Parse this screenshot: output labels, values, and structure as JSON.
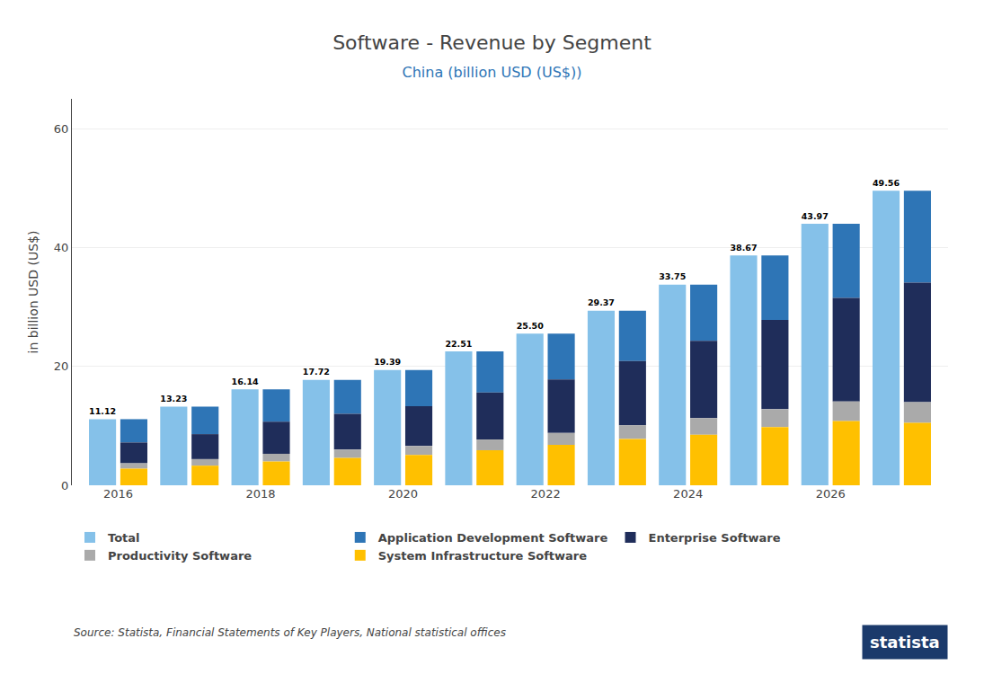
{
  "chart_data": {
    "type": "bar",
    "title": "Software - Revenue by Segment",
    "subtitle": "China (billion USD (US$))",
    "categories": [
      "2016",
      null,
      "2018",
      null,
      "2020",
      null,
      "2022",
      null,
      "2024",
      null,
      "2026",
      null
    ],
    "series": [
      {
        "name": "Total",
        "type": "bar",
        "color": "#85C1E9",
        "values": [
          11.12,
          13.23,
          16.14,
          17.72,
          19.39,
          22.51,
          25.5,
          29.37,
          33.75,
          38.67,
          43.97,
          49.56
        ],
        "value_labels": [
          "11.12",
          "13.23",
          "16.14",
          "17.72",
          "19.39",
          "22.51",
          "25.50",
          "29.37",
          "33.75",
          "38.67",
          "43.97",
          "49.56"
        ],
        "data_labels": true
      },
      {
        "name": "Application Development Software",
        "type": "stacked_bar",
        "color": "#2E75B6",
        "values": [
          3.92,
          4.63,
          5.44,
          5.72,
          6.09,
          6.91,
          7.7,
          8.47,
          9.45,
          10.87,
          12.47,
          15.46
        ]
      },
      {
        "name": "Enterprise Software",
        "type": "stacked_bar",
        "color": "#1F2D5A",
        "values": [
          3.5,
          4.2,
          5.4,
          6.0,
          6.7,
          7.9,
          9.0,
          10.8,
          13.0,
          15.0,
          17.4,
          20.1
        ]
      },
      {
        "name": "Productivity Software",
        "type": "stacked_bar",
        "color": "#AAAAAA",
        "values": [
          0.9,
          1.1,
          1.3,
          1.4,
          1.5,
          1.8,
          2.0,
          2.3,
          2.8,
          3.0,
          3.3,
          3.5
        ]
      },
      {
        "name": "System Infrastructure Software",
        "type": "stacked_bar",
        "color": "#FFC000",
        "values": [
          2.8,
          3.3,
          4.0,
          4.6,
          5.1,
          5.9,
          6.8,
          7.8,
          8.5,
          9.8,
          10.8,
          10.5
        ]
      }
    ],
    "ylabel": "in billion USD (US$)",
    "ylim": [
      0,
      65
    ],
    "yticks": [
      0,
      20,
      40,
      60
    ],
    "grid": true,
    "legend": "bottom",
    "annotations": [
      "Source: Statista, Financial Statements of Key Players, National statistical offices",
      "statista"
    ]
  }
}
